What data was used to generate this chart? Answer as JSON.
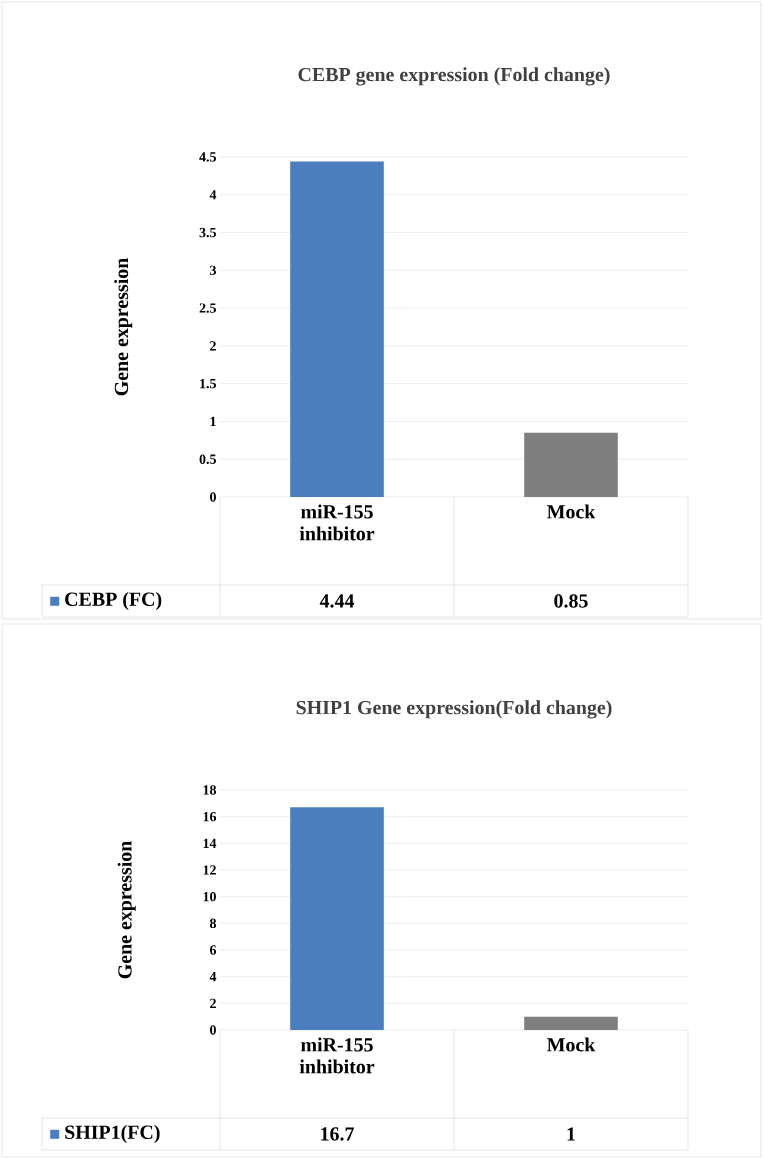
{
  "chart_data": [
    {
      "type": "bar",
      "title": "CEBP gene expression   (Fold change)",
      "ylabel": "Gene expression",
      "categories": [
        "miR-155 inhibitor",
        "Mock"
      ],
      "series": [
        {
          "name": "CEBP  (FC)",
          "color": "#4a7ebf",
          "colors": [
            "#4a7ebf",
            "#7f7f7f"
          ],
          "values": [
            4.44,
            0.85
          ]
        }
      ],
      "ylim": [
        0,
        4.5
      ],
      "yticks": [
        0,
        0.5,
        1,
        1.5,
        2,
        2.5,
        3,
        3.5,
        4,
        4.5
      ],
      "grid": "y",
      "legend": "bottom",
      "data_labels": true
    },
    {
      "type": "bar",
      "title": "SHIP1 Gene expression(Fold change)",
      "ylabel": "Gene expression",
      "categories": [
        "miR-155 inhibitor",
        "Mock"
      ],
      "series": [
        {
          "name": "SHIP1(FC)",
          "color": "#4a7ebf",
          "colors": [
            "#4a7ebf",
            "#7f7f7f"
          ],
          "values": [
            16.7,
            1
          ]
        }
      ],
      "ylim": [
        0,
        18
      ],
      "yticks": [
        0,
        2,
        4,
        6,
        8,
        10,
        12,
        14,
        16,
        18
      ],
      "grid": "y",
      "legend": "bottom",
      "data_labels": true
    }
  ]
}
